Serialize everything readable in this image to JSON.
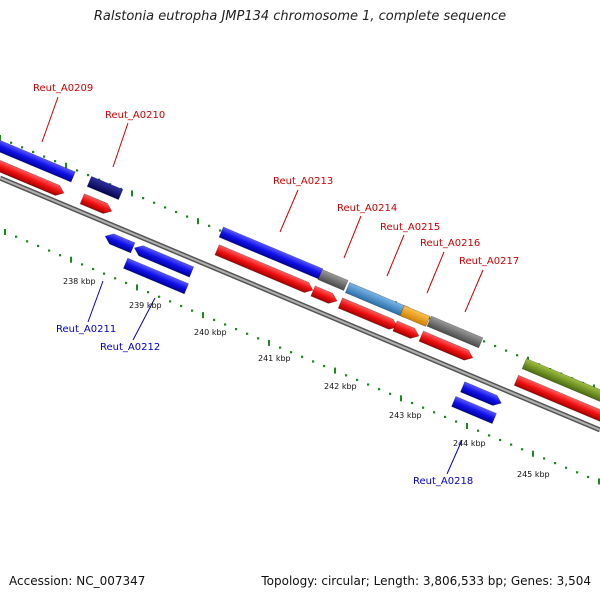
{
  "title": "Ralstonia eutropha JMP134 chromosome 1, complete sequence",
  "accession": "Accession: NC_007347",
  "summary": "Topology: circular; Length: 3,806,533 bp; Genes: 3,504",
  "colors": {
    "forward_cds": "#1010e8",
    "forward_gene": "#f01010",
    "reverse_cds": "#1010e8",
    "dark_navy": "#0a0a6e",
    "gray": "#6e6e6e",
    "steelblue": "#4a8ec8",
    "orange": "#f0a020",
    "olive": "#6e8e20",
    "forward_label": "#cc0000",
    "reverse_label": "#0000cc",
    "backbone": "#8c8c8c",
    "dots": "#1a8a1a"
  },
  "kbp_ticks": [
    "238 kbp",
    "239 kbp",
    "240 kbp",
    "241 kbp",
    "242 kbp",
    "243 kbp",
    "244 kbp",
    "245 kbp"
  ],
  "forward_labels": [
    "Reut_A0209",
    "Reut_A0210",
    "Reut_A0213",
    "Reut_A0214",
    "Reut_A0215",
    "Reut_A0216",
    "Reut_A0217"
  ],
  "reverse_labels": [
    "Reut_A0211",
    "Reut_A0212",
    "Reut_A0218"
  ]
}
